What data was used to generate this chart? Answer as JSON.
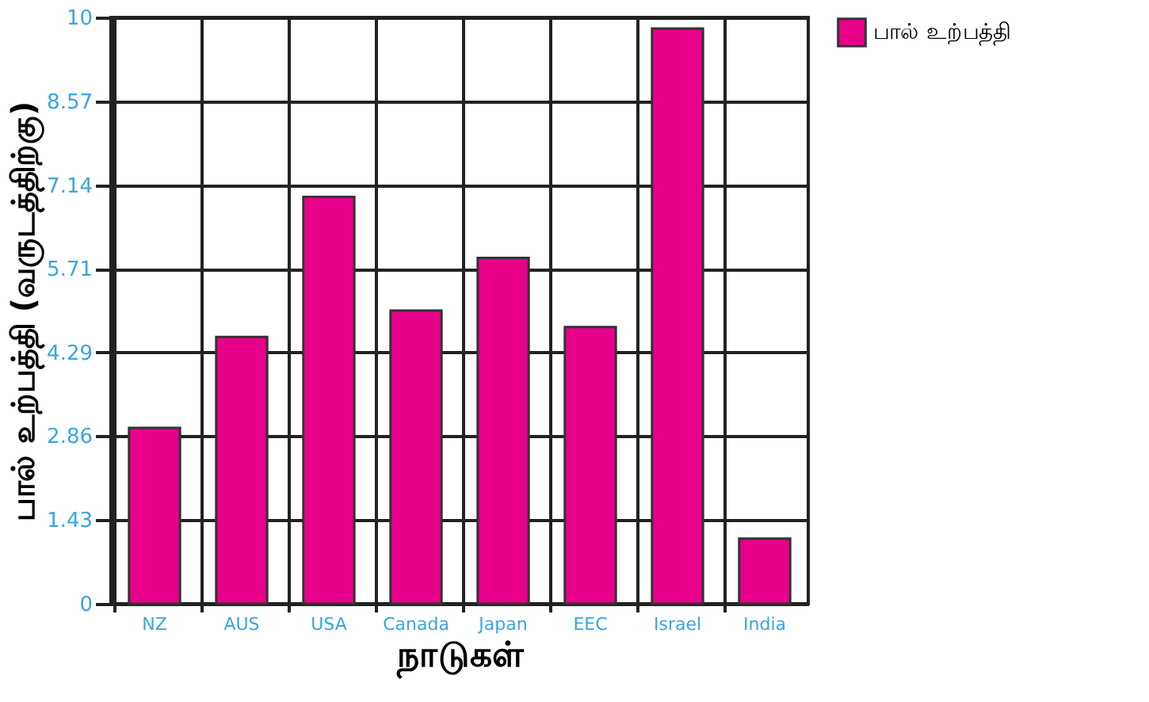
{
  "chart_data": {
    "type": "bar",
    "xlabel": "நாடுகள்",
    "ylabel": "பால் உற்பத்தி (வருடத்திற்கு)",
    "categories": [
      "NZ",
      "AUS",
      "USA",
      "Canada",
      "Japan",
      "EEC",
      "Israel",
      "India"
    ],
    "series": [
      {
        "name": "பால் உற்பத்தி",
        "color": "#e8008a",
        "values": [
          3.0,
          4.55,
          6.94,
          5.0,
          5.9,
          4.72,
          9.81,
          1.11
        ]
      }
    ],
    "ylim": [
      0,
      10
    ],
    "yticks": [
      0,
      1.43,
      2.86,
      4.29,
      5.71,
      7.14,
      8.57,
      10
    ],
    "grid": true,
    "legend": "right"
  }
}
